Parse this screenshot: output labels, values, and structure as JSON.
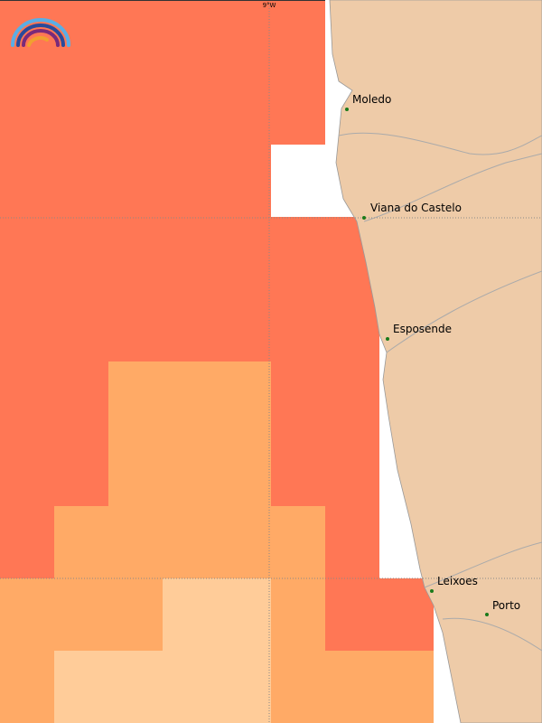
{
  "map": {
    "grid_label": "9°W",
    "cities": [
      "Moledo",
      "Viana do Castelo",
      "Esposende",
      "Leixoes",
      "Porto"
    ]
  }
}
